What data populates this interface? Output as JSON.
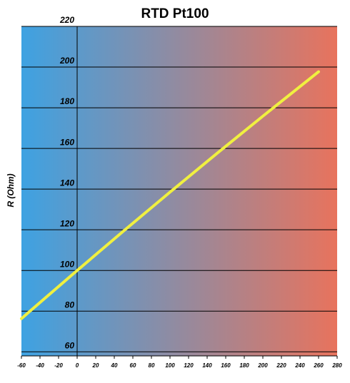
{
  "chart_data": {
    "type": "line",
    "title": "RTD Pt100",
    "y_label": "R (Ohm)",
    "x": [
      -60,
      -50,
      0,
      50,
      100,
      150,
      200,
      260
    ],
    "series": [
      {
        "name": "Pt100",
        "color": "#f0f040",
        "values": [
          76.33,
          80.31,
          100,
          119.4,
          138.51,
          157.33,
          175.86,
          197.71
        ]
      }
    ],
    "xlim": [
      -60,
      280
    ],
    "xticks": [
      -60,
      -40,
      -20,
      0,
      20,
      40,
      60,
      80,
      100,
      120,
      140,
      160,
      180,
      200,
      220,
      240,
      260,
      280
    ],
    "ylim": [
      58,
      220
    ],
    "yticks": [
      60,
      80,
      100,
      120,
      140,
      160,
      180,
      200,
      220
    ],
    "grid": true,
    "background": [
      "#3ea2e2",
      "#e8735d"
    ]
  }
}
